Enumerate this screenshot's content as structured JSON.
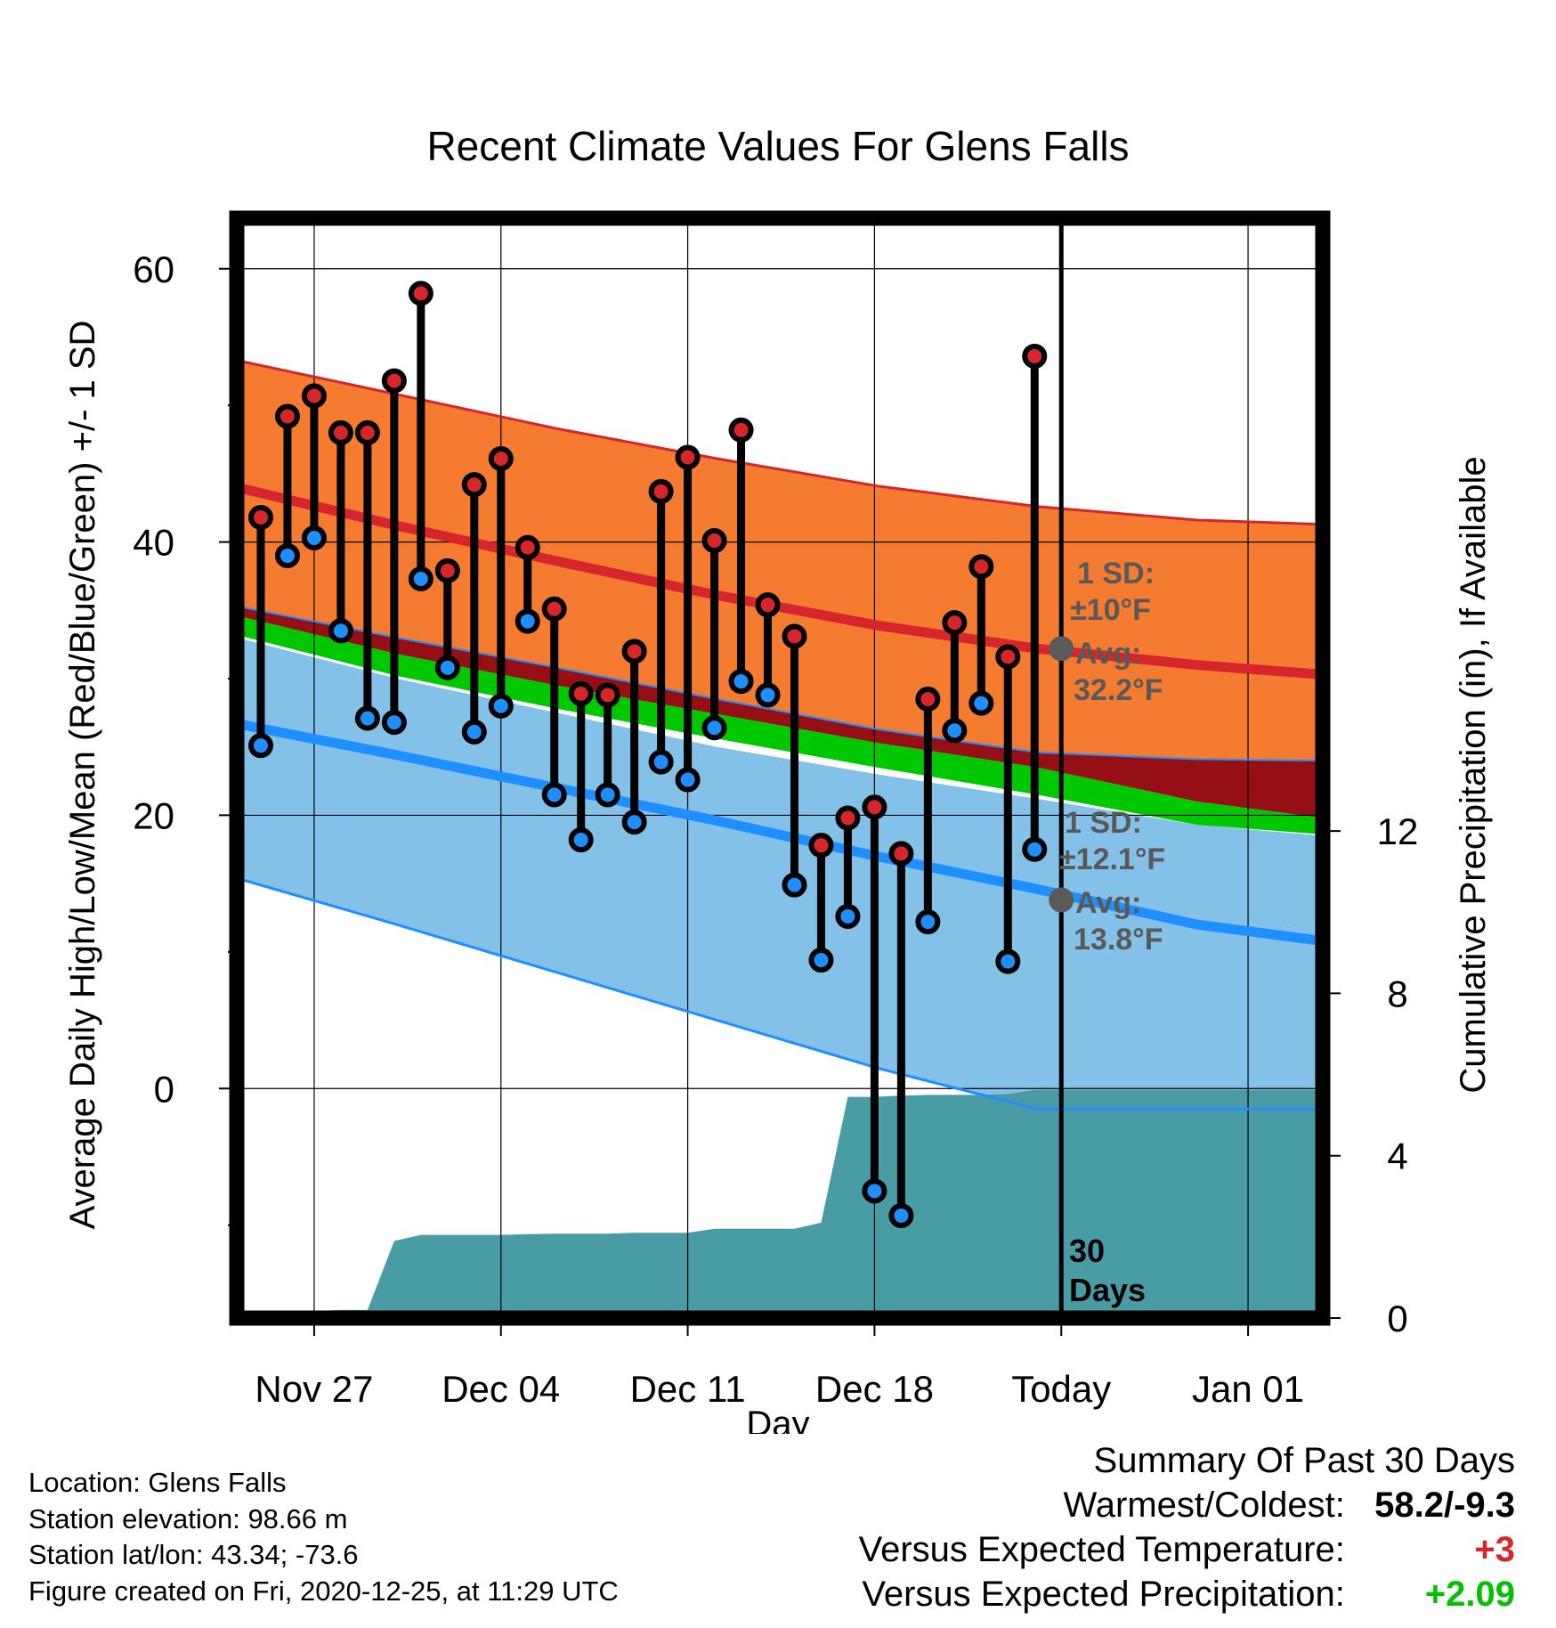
{
  "chart_data": {
    "type": "line",
    "title": "Recent Climate Values For Glens Falls",
    "xlabel": "Day",
    "ylabel": "Average Daily High/Low/Mean (Red/Blue/Green) +/- 1 SD",
    "y2label": "Cumulative Precipitation (in), If Available",
    "x_tick_labels": [
      "Nov 27",
      "Dec 04",
      "Dec 11",
      "Dec 18",
      "Today",
      "Jan 01"
    ],
    "x_tick_days": [
      1,
      8,
      15,
      22,
      29,
      36
    ],
    "xlim": [
      -1.9,
      38.8
    ],
    "y_ticks": [
      0,
      20,
      40,
      60
    ],
    "ylim": [
      -16.8,
      63.7
    ],
    "y2_ticks": [
      0,
      4,
      8,
      12
    ],
    "y2lim": [
      0,
      27.1
    ],
    "grid": true,
    "normals": {
      "days": [
        -1.9,
        4.1,
        10.1,
        16.1,
        22.1,
        28.1,
        34.1,
        38.8
      ],
      "high_plus_sd": [
        53.3,
        50.8,
        48.3,
        46.1,
        44.1,
        42.6,
        41.6,
        41.3
      ],
      "high": [
        44.0,
        41.2,
        38.6,
        36.1,
        33.9,
        32.2,
        31.0,
        30.3
      ],
      "high_minus_sd": [
        35.3,
        33.0,
        30.8,
        28.5,
        26.3,
        24.6,
        24.1,
        24.0
      ],
      "mean_top": [
        34.6,
        31.8,
        29.5,
        27.4,
        25.3,
        23.5,
        21.0,
        19.8
      ],
      "mean_bottom": [
        33.2,
        30.2,
        27.8,
        25.6,
        23.5,
        21.5,
        19.3,
        18.6
      ],
      "low_plus_sd": [
        33.0,
        30.0,
        27.5,
        25.0,
        23.0,
        21.2,
        19.3,
        18.5
      ],
      "low": [
        26.7,
        24.4,
        22.0,
        19.6,
        17.0,
        14.6,
        12.0,
        10.8
      ],
      "low_minus_sd": [
        15.4,
        12.0,
        8.5,
        5.0,
        1.5,
        -1.5,
        -1.5,
        -1.5
      ]
    },
    "today_normals": {
      "high_sd_label": "1 SD:",
      "high_sd_value": "±10°F",
      "high_avg_label": "Avg:",
      "high_avg_value": "32.2°F",
      "high_avg": 32.2,
      "low_sd_label": "1 SD:",
      "low_sd_value": "±12.1°F",
      "low_avg_label": "Avg:",
      "low_avg_value": "13.8°F",
      "low_avg": 13.8
    },
    "period_label": [
      "30",
      "Days"
    ],
    "series": [
      {
        "name": "High",
        "color": "#d7262b",
        "days": [
          -1,
          0,
          1,
          2,
          3,
          4,
          5,
          6,
          7,
          8,
          9,
          10,
          11,
          12,
          13,
          14,
          15,
          16,
          17,
          18,
          19,
          20,
          21,
          22,
          23,
          24,
          25,
          26,
          27,
          28
        ],
        "values": [
          41.8,
          49.2,
          50.7,
          48.0,
          48.0,
          51.8,
          58.2,
          37.9,
          44.2,
          46.1,
          39.6,
          35.1,
          28.9,
          28.8,
          32.0,
          43.7,
          46.2,
          40.1,
          48.2,
          35.4,
          33.1,
          17.8,
          19.8,
          20.6,
          17.2,
          28.5,
          34.1,
          38.2,
          31.6,
          53.6
        ]
      },
      {
        "name": "Low",
        "color": "#1f8fff",
        "days": [
          -1,
          0,
          1,
          2,
          3,
          4,
          5,
          6,
          7,
          8,
          9,
          10,
          11,
          12,
          13,
          14,
          15,
          16,
          17,
          18,
          19,
          20,
          21,
          22,
          23,
          24,
          25,
          26,
          27,
          28
        ],
        "values": [
          25.1,
          39.0,
          40.3,
          33.5,
          27.1,
          26.8,
          37.3,
          30.8,
          26.1,
          28.0,
          34.2,
          21.5,
          18.2,
          21.5,
          19.5,
          23.9,
          22.6,
          26.4,
          29.8,
          28.8,
          14.9,
          9.4,
          12.6,
          -7.5,
          -9.3,
          12.2,
          26.2,
          28.2,
          9.3,
          17.5
        ]
      },
      {
        "name": "Precipitation",
        "color": "#499ba4",
        "axis": "y2",
        "days": [
          -1.9,
          -0.9,
          0,
          2,
          3,
          4,
          5,
          6,
          7,
          8,
          9,
          10,
          11,
          12,
          13,
          14,
          15,
          16,
          17,
          18,
          19,
          20,
          21,
          22,
          23,
          24,
          25,
          26,
          27,
          28,
          29,
          30,
          31,
          32,
          33,
          34,
          35,
          36,
          37,
          38,
          38.8
        ],
        "values": [
          0,
          0,
          0.15,
          0.2,
          0.2,
          1.9,
          2.05,
          2.05,
          2.05,
          2.05,
          2.07,
          2.08,
          2.08,
          2.08,
          2.1,
          2.1,
          2.1,
          2.2,
          2.2,
          2.2,
          2.2,
          2.35,
          5.45,
          5.45,
          5.48,
          5.5,
          5.5,
          5.5,
          5.52,
          5.62,
          5.62,
          5.62,
          5.62,
          5.62,
          5.62,
          5.62,
          5.62,
          5.62,
          5.62,
          5.62,
          5.62
        ]
      }
    ],
    "colors": {
      "high_band": "#f47b30",
      "high_line": "#d7262b",
      "mean_gap": "#960f15",
      "mean_band": "#00c800",
      "low_band": "#84c1e8",
      "low_line": "#1f8fff",
      "precip": "#499ba4"
    },
    "today_day": 29
  },
  "footer": {
    "location": "Location: Glens Falls",
    "elevation": "Station elevation: 98.66 m",
    "latlon": "Station lat/lon: 43.34; -73.6",
    "created": "Figure created on Fri, 2020-12-25, at 11:29 UTC"
  },
  "summary": {
    "heading": "Summary Of Past 30 Days",
    "warmest_label": "Warmest/Coldest:",
    "warmest_value": "58.2/-9.3",
    "temp_label": "Versus Expected Temperature:",
    "temp_value": "+3",
    "temp_color": "#d7262b",
    "precip_label": "Versus Expected Precipitation:",
    "precip_value": "+2.09",
    "precip_color": "#00c000"
  }
}
